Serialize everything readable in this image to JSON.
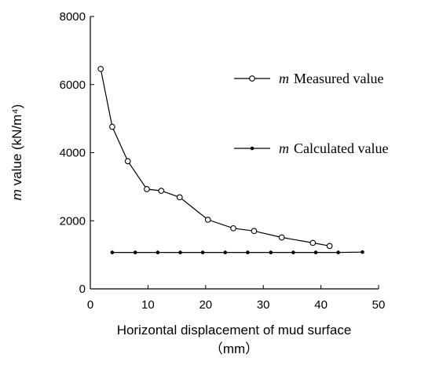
{
  "chart_data": {
    "type": "line",
    "xlabel": "Horizontal displacement of mud surface",
    "xlabel_unit": "（mm）",
    "ylabel_var": "m",
    "ylabel_text": " value (kN/m⁴)",
    "xlim": [
      0,
      50
    ],
    "ylim": [
      0,
      8000
    ],
    "xticks": [
      "0",
      "10",
      "20",
      "30",
      "40",
      "50"
    ],
    "yticks": [
      "0",
      "2000",
      "4000",
      "6000",
      "8000"
    ],
    "grid": false,
    "legend_position": "right",
    "series": [
      {
        "name": "Measured value",
        "name_var": "m",
        "marker": "open-circle",
        "color": "#000000",
        "x": [
          1.8,
          3.8,
          6.5,
          9.8,
          12.3,
          15.5,
          20.4,
          24.8,
          28.4,
          33.2,
          38.6,
          41.5
        ],
        "y": [
          6460,
          4760,
          3750,
          2930,
          2880,
          2690,
          2030,
          1780,
          1700,
          1510,
          1350,
          1260
        ]
      },
      {
        "name": "Calculated value",
        "name_var": "m",
        "marker": "filled-dot",
        "color": "#000000",
        "x": [
          3.8,
          7.8,
          11.7,
          15.6,
          19.5,
          23.4,
          27.3,
          31.3,
          35.2,
          39.1,
          43.0,
          47.2
        ],
        "y": [
          1070,
          1070,
          1070,
          1070,
          1070,
          1070,
          1070,
          1070,
          1070,
          1070,
          1070,
          1080
        ]
      }
    ]
  }
}
